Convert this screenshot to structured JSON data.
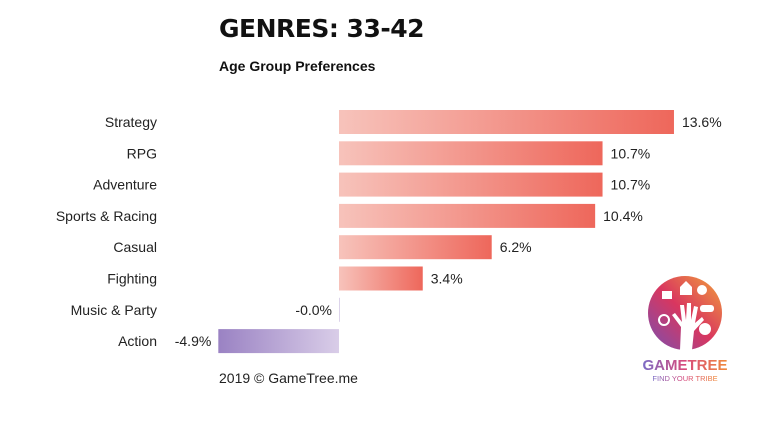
{
  "title": "GENRES: 33-42",
  "subtitle": "Age Group Preferences",
  "footer": "2019 © GameTree.me",
  "logo": {
    "name": "GAMETREE",
    "tagline": "FIND YOUR TRIBE"
  },
  "colors": {
    "positive_start": "#f7c3bb",
    "positive_end": "#ee675b",
    "negative_start": "#9a82c3",
    "negative_end": "#d9cde8"
  },
  "chart_data": {
    "type": "bar",
    "orientation": "horizontal",
    "title": "GENRES: 33-42",
    "subtitle": "Age Group Preferences",
    "categories": [
      "Strategy",
      "RPG",
      "Adventure",
      "Sports & Racing",
      "Casual",
      "Fighting",
      "Music & Party",
      "Action"
    ],
    "values": [
      13.6,
      10.7,
      10.7,
      10.4,
      6.2,
      3.4,
      -0.0,
      -4.9
    ],
    "labels": [
      "13.6%",
      "10.7%",
      "10.7%",
      "10.4%",
      "6.2%",
      "3.4%",
      "-0.0%",
      "-4.9%"
    ],
    "unit": "%",
    "grid": false
  }
}
